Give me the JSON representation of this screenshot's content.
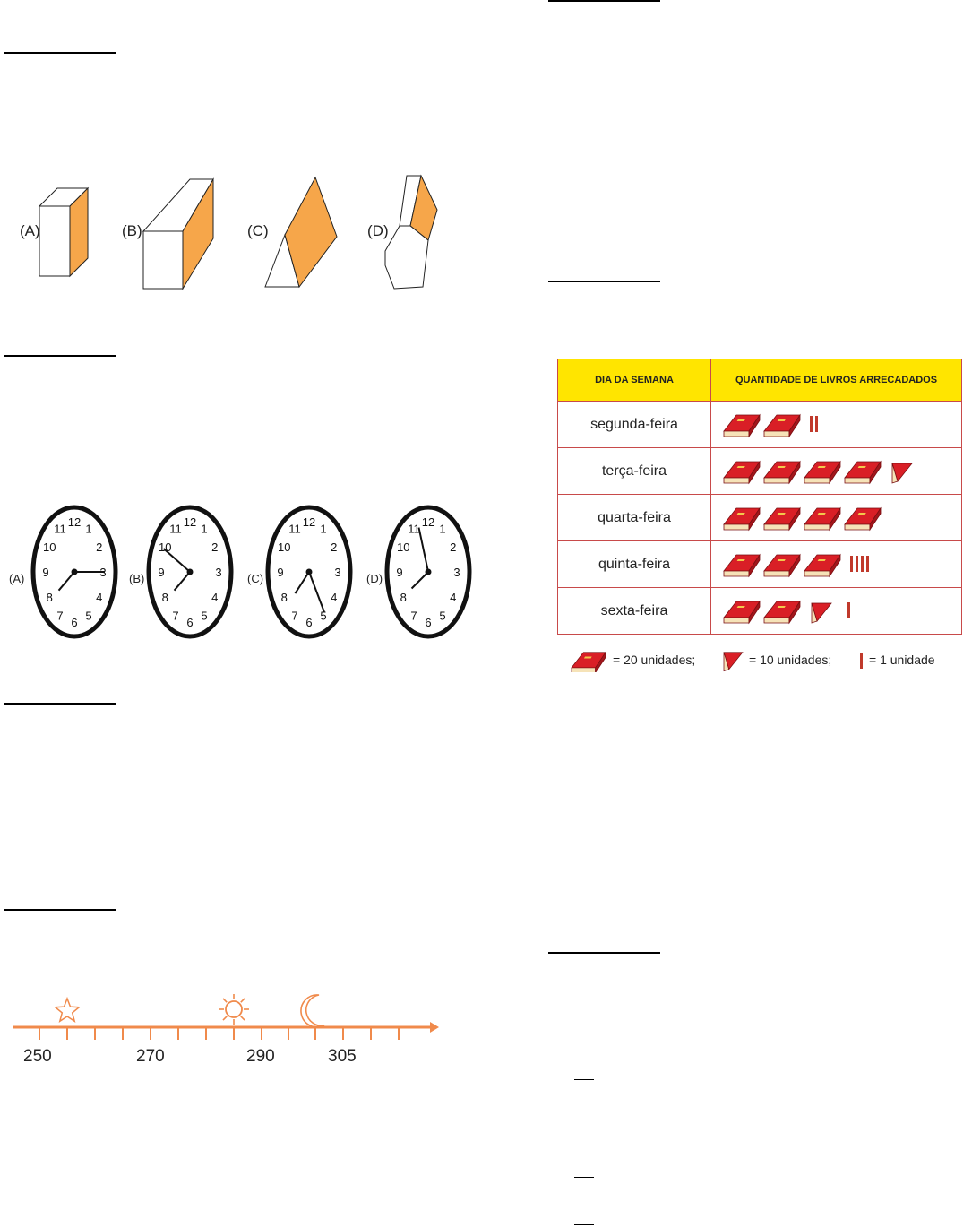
{
  "shapes": {
    "labels": [
      "(A)",
      "(B)",
      "(C)",
      "(D)"
    ]
  },
  "clocks": {
    "labels": [
      "(A)",
      "(B)",
      "(C)",
      "(D)"
    ],
    "numbers": [
      "12",
      "1",
      "2",
      "3",
      "4",
      "5",
      "6",
      "7",
      "8",
      "9",
      "10",
      "11"
    ],
    "times": [
      {
        "hour_hand": 7.75,
        "minute_hand": 15
      },
      {
        "hour_hand": 7.75,
        "minute_hand": 50
      },
      {
        "hour_hand": 7.5,
        "minute_hand": 25
      },
      {
        "hour_hand": 7.9,
        "minute_hand": 57
      }
    ]
  },
  "number_line": {
    "labels": [
      "250",
      "270",
      "290",
      "305"
    ],
    "markers": [
      "star",
      "sun",
      "moon"
    ]
  },
  "books_table": {
    "header_day": "DIA DA SEMANA",
    "header_qty": "QUANTIDADE DE LIVROS ARRECADADOS",
    "rows": [
      {
        "day": "segunda-feira",
        "books": 2,
        "half": 0,
        "tally": 2
      },
      {
        "day": "terça-feira",
        "books": 4,
        "half": 1,
        "tally": 0
      },
      {
        "day": "quarta-feira",
        "books": 4,
        "half": 0,
        "tally": 0
      },
      {
        "day": "quinta-feira",
        "books": 3,
        "half": 0,
        "tally": 4
      },
      {
        "day": "sexta-feira",
        "books": 2,
        "half": 1,
        "tally": 1
      }
    ],
    "legend": {
      "book": "= 20 unidades;",
      "half": "= 10 unidades;",
      "tally": "= 1 unidade"
    }
  },
  "colors": {
    "orange": "#f6a64a",
    "line_orange": "#f08a4b",
    "book_red": "#d91f26",
    "header_yellow": "#ffe500"
  }
}
